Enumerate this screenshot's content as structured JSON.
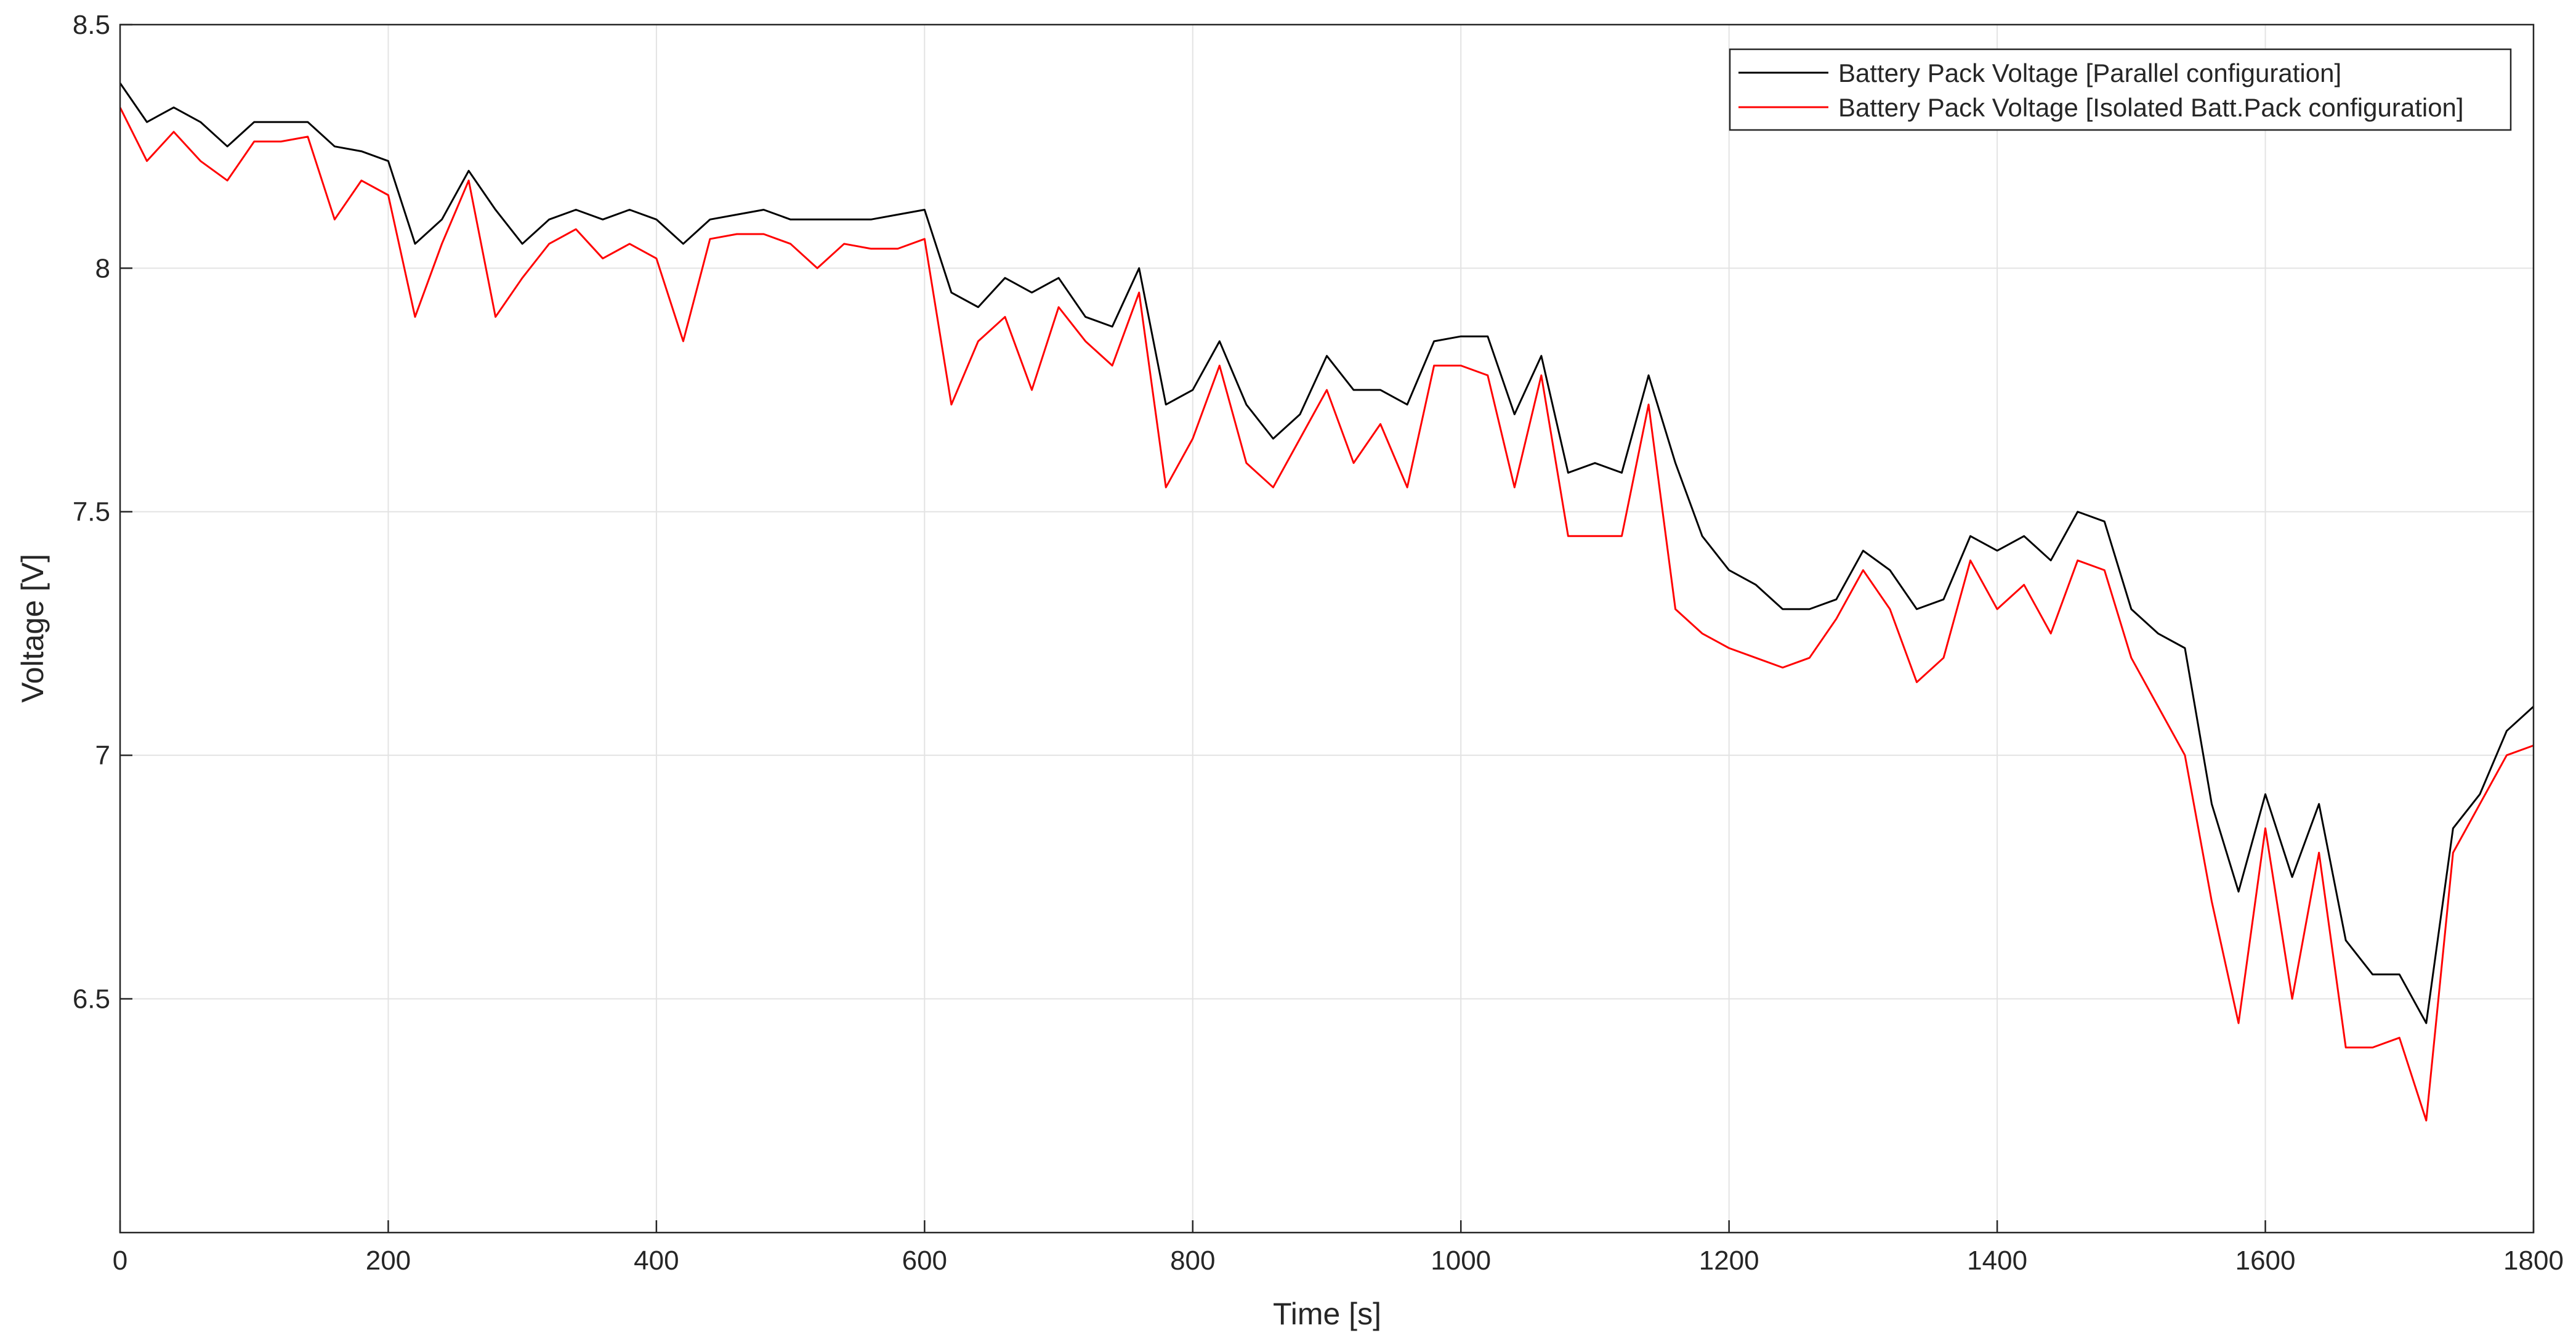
{
  "chart_data": {
    "type": "line",
    "xlabel": "Time [s]",
    "ylabel": "Voltage [V]",
    "x": [
      0,
      20,
      40,
      60,
      80,
      100,
      120,
      140,
      160,
      180,
      200,
      220,
      240,
      260,
      280,
      300,
      320,
      340,
      360,
      380,
      400,
      420,
      440,
      460,
      480,
      500,
      520,
      540,
      560,
      580,
      600,
      620,
      640,
      660,
      680,
      700,
      720,
      740,
      760,
      780,
      800,
      820,
      840,
      860,
      880,
      900,
      920,
      940,
      960,
      980,
      1000,
      1020,
      1040,
      1060,
      1080,
      1100,
      1120,
      1140,
      1160,
      1180,
      1200,
      1220,
      1240,
      1260,
      1280,
      1300,
      1320,
      1340,
      1360,
      1380,
      1400,
      1420,
      1440,
      1460,
      1480,
      1500,
      1520,
      1540,
      1560,
      1580,
      1600,
      1620,
      1640,
      1660,
      1680,
      1700,
      1720,
      1740,
      1760,
      1780,
      1800
    ],
    "series": [
      {
        "name": "Battery Pack Voltage [Parallel configuration]",
        "color": "#000000",
        "values": [
          8.38,
          8.3,
          8.33,
          8.3,
          8.25,
          8.3,
          8.3,
          8.3,
          8.25,
          8.24,
          8.22,
          8.05,
          8.1,
          8.2,
          8.12,
          8.05,
          8.1,
          8.12,
          8.1,
          8.12,
          8.1,
          8.05,
          8.1,
          8.11,
          8.12,
          8.1,
          8.1,
          8.1,
          8.1,
          8.11,
          8.12,
          7.95,
          7.92,
          7.98,
          7.95,
          7.98,
          7.9,
          7.88,
          8.0,
          7.72,
          7.75,
          7.85,
          7.72,
          7.65,
          7.7,
          7.82,
          7.75,
          7.75,
          7.72,
          7.85,
          7.86,
          7.86,
          7.7,
          7.82,
          7.58,
          7.6,
          7.58,
          7.78,
          7.6,
          7.45,
          7.38,
          7.35,
          7.3,
          7.3,
          7.32,
          7.42,
          7.38,
          7.3,
          7.32,
          7.45,
          7.42,
          7.45,
          7.4,
          7.5,
          7.48,
          7.3,
          7.25,
          7.22,
          6.9,
          6.72,
          6.92,
          6.75,
          6.9,
          6.62,
          6.55,
          6.55,
          6.45,
          6.85,
          6.92,
          7.05,
          7.1
        ]
      },
      {
        "name": "Battery Pack Voltage [Isolated Batt.Pack configuration]",
        "color": "#ff0000",
        "values": [
          8.33,
          8.22,
          8.28,
          8.22,
          8.18,
          8.26,
          8.26,
          8.27,
          8.1,
          8.18,
          8.15,
          7.9,
          8.05,
          8.18,
          7.9,
          7.98,
          8.05,
          8.08,
          8.02,
          8.05,
          8.02,
          7.85,
          8.06,
          8.07,
          8.07,
          8.05,
          8.0,
          8.05,
          8.04,
          8.04,
          8.06,
          7.72,
          7.85,
          7.9,
          7.75,
          7.92,
          7.85,
          7.8,
          7.95,
          7.55,
          7.65,
          7.8,
          7.6,
          7.55,
          7.65,
          7.75,
          7.6,
          7.68,
          7.55,
          7.8,
          7.8,
          7.78,
          7.55,
          7.78,
          7.45,
          7.45,
          7.45,
          7.72,
          7.3,
          7.25,
          7.22,
          7.2,
          7.18,
          7.2,
          7.28,
          7.38,
          7.3,
          7.15,
          7.2,
          7.4,
          7.3,
          7.35,
          7.25,
          7.4,
          7.38,
          7.2,
          7.1,
          7.0,
          6.7,
          6.45,
          6.85,
          6.5,
          6.8,
          6.4,
          6.4,
          6.42,
          6.25,
          6.8,
          6.9,
          7.0,
          7.02
        ]
      }
    ],
    "xlim": [
      0,
      1800
    ],
    "xticks": [
      0,
      200,
      400,
      600,
      800,
      1000,
      1200,
      1400,
      1600,
      1800
    ],
    "ylim": [
      6.02,
      8.5
    ],
    "yticks": [
      6.5,
      7,
      7.5,
      8,
      8.5
    ],
    "grid": true,
    "legend": "upper right"
  }
}
